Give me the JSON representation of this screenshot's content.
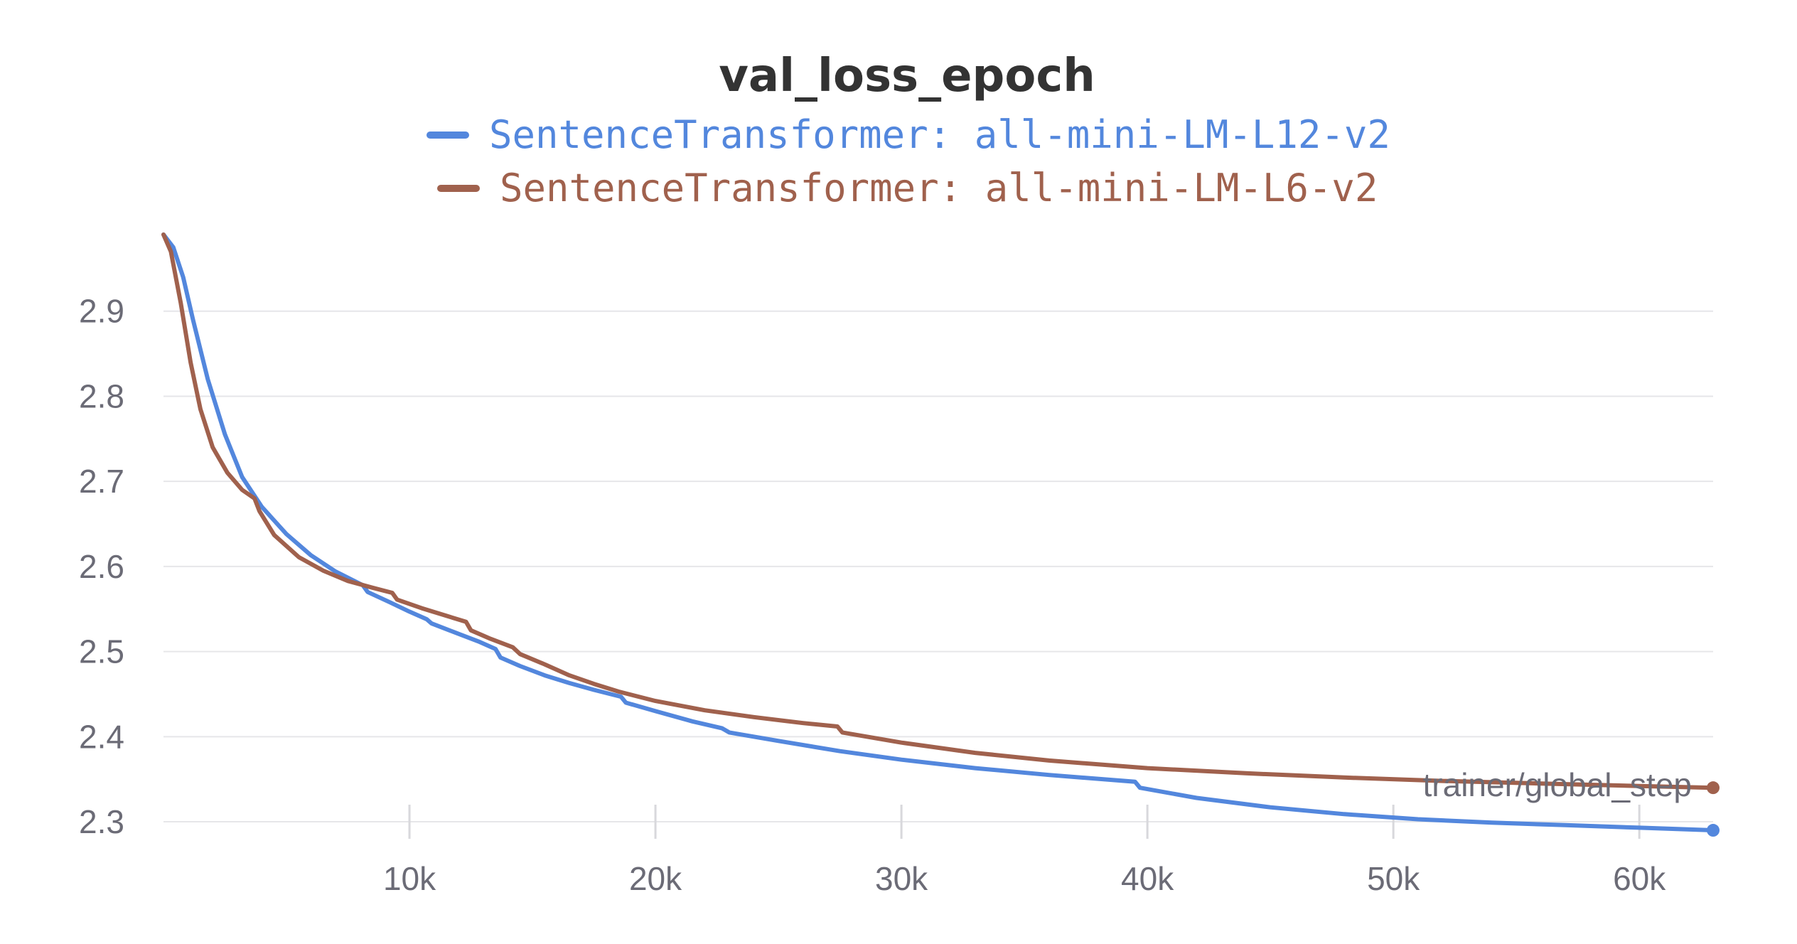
{
  "chart_data": {
    "type": "line",
    "title": "val_loss_epoch",
    "xlabel": "trainer/global_step",
    "ylabel": "",
    "xlim": [
      0,
      63000
    ],
    "ylim": [
      2.28,
      2.99
    ],
    "x_ticks": [
      10000,
      20000,
      30000,
      40000,
      50000,
      60000
    ],
    "x_tick_labels": [
      "10k",
      "20k",
      "30k",
      "40k",
      "50k",
      "60k"
    ],
    "y_ticks": [
      2.3,
      2.4,
      2.5,
      2.6,
      2.7,
      2.8,
      2.9
    ],
    "y_tick_labels": [
      "2.3",
      "2.4",
      "2.5",
      "2.6",
      "2.7",
      "2.8",
      "2.9"
    ],
    "grid": "horizontal",
    "legend_position": "top-center",
    "series": [
      {
        "name": "SentenceTransformer: all-mini-LM-L12-v2",
        "color": "#5387dd",
        "x": [
          0,
          400,
          800,
          1200,
          1800,
          2500,
          3200,
          4000,
          5000,
          6000,
          7000,
          8100,
          8300,
          9200,
          10000,
          10700,
          10900,
          11800,
          12800,
          13500,
          13700,
          14500,
          15500,
          16500,
          17500,
          18600,
          18800,
          20000,
          21500,
          22700,
          23000,
          25000,
          27500,
          30000,
          33000,
          36000,
          39500,
          39700,
          42000,
          45000,
          48000,
          51000,
          54000,
          57000,
          60000,
          63000
        ],
        "y": [
          2.99,
          2.975,
          2.94,
          2.89,
          2.82,
          2.755,
          2.705,
          2.67,
          2.638,
          2.613,
          2.594,
          2.578,
          2.57,
          2.558,
          2.547,
          2.538,
          2.533,
          2.523,
          2.512,
          2.503,
          2.493,
          2.483,
          2.472,
          2.463,
          2.455,
          2.447,
          2.44,
          2.43,
          2.418,
          2.41,
          2.405,
          2.395,
          2.383,
          2.373,
          2.363,
          2.355,
          2.347,
          2.34,
          2.328,
          2.317,
          2.309,
          2.303,
          2.299,
          2.296,
          2.293,
          2.29
        ]
      },
      {
        "name": "SentenceTransformer: all-mini-LM-L6-v2",
        "color": "#a0614d",
        "x": [
          0,
          300,
          700,
          1100,
          1500,
          2000,
          2600,
          3200,
          3700,
          3900,
          4500,
          5500,
          6500,
          7500,
          8500,
          9300,
          9500,
          10500,
          11500,
          12300,
          12500,
          13300,
          14200,
          14500,
          15500,
          16500,
          17500,
          18500,
          20000,
          22000,
          24000,
          26000,
          27400,
          27600,
          30000,
          33000,
          36000,
          40000,
          44000,
          48000,
          52000,
          56000,
          60000,
          63000
        ],
        "y": [
          2.99,
          2.97,
          2.91,
          2.84,
          2.785,
          2.74,
          2.71,
          2.69,
          2.68,
          2.665,
          2.637,
          2.611,
          2.595,
          2.583,
          2.575,
          2.569,
          2.561,
          2.551,
          2.542,
          2.535,
          2.525,
          2.515,
          2.505,
          2.497,
          2.485,
          2.472,
          2.462,
          2.453,
          2.442,
          2.431,
          2.423,
          2.416,
          2.412,
          2.405,
          2.393,
          2.381,
          2.372,
          2.363,
          2.357,
          2.352,
          2.348,
          2.345,
          2.342,
          2.34
        ]
      }
    ]
  }
}
